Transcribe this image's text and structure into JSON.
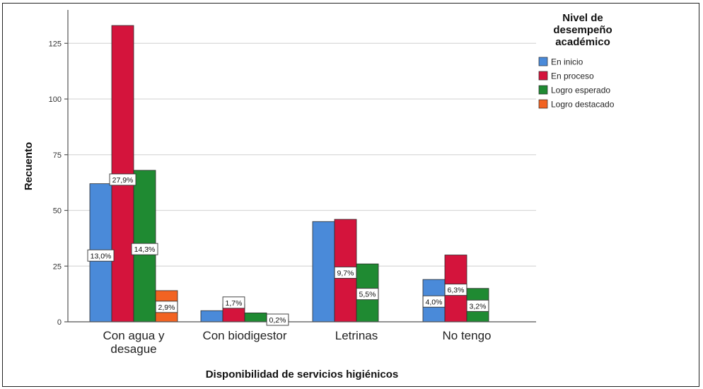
{
  "chart_data": {
    "type": "bar",
    "xlabel": "Disponibilidad de servicios higiénicos",
    "ylabel": "Recuento",
    "ylim": [
      0,
      140
    ],
    "yticks": [
      0,
      25,
      50,
      75,
      100,
      125
    ],
    "grid": true,
    "legend_position": "top-right",
    "legend_title": [
      "Nivel de",
      "desempeño",
      "académico"
    ],
    "categories": [
      [
        "Con agua y",
        "desague"
      ],
      [
        "Con biodigestor"
      ],
      [
        "Letrinas"
      ],
      [
        "No tengo"
      ]
    ],
    "series": [
      {
        "name": "En inicio",
        "color": "#4a8ad9",
        "values": [
          62,
          5,
          45,
          19
        ],
        "labels": [
          "13,0%",
          null,
          null,
          "4,0%"
        ]
      },
      {
        "name": "En proceso",
        "color": "#d4143c",
        "values": [
          133,
          8,
          46,
          30
        ],
        "labels": [
          "27,9%",
          "1,7%",
          "9,7%",
          "6,3%"
        ]
      },
      {
        "name": "Logro esperado",
        "color": "#1f8a32",
        "values": [
          68,
          4,
          26,
          15
        ],
        "labels": [
          "14,3%",
          null,
          "5,5%",
          "3,2%"
        ]
      },
      {
        "name": "Logro destacado",
        "color": "#f26322",
        "values": [
          14,
          1,
          0,
          0
        ],
        "labels": [
          "2,9%",
          "0,2%",
          null,
          null
        ]
      }
    ]
  }
}
